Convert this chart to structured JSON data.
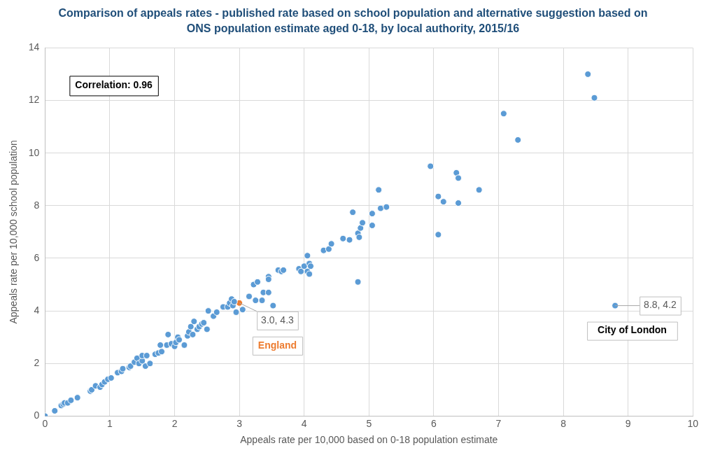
{
  "chart_data": {
    "type": "scatter",
    "title": "Comparison of appeals rates - published rate based on school population and alternative suggestion based on ONS population estimate aged 0-18, by local authority, 2015/16",
    "xlabel": "Appeals rate per 10,000 based on 0-18 population estimate",
    "ylabel": "Appeals rate per 10,000 school population",
    "xlim": [
      0,
      10
    ],
    "ylim": [
      0,
      14
    ],
    "xticks": [
      0,
      1,
      2,
      3,
      4,
      5,
      6,
      7,
      8,
      9,
      10
    ],
    "yticks": [
      0,
      2,
      4,
      6,
      8,
      10,
      12,
      14
    ],
    "grid": true,
    "legend": false,
    "marker": "circle",
    "annotations": [
      "Correlation: 0.96"
    ],
    "series": [
      {
        "color": "#5b9bd5",
        "x": [
          0,
          0.15,
          0.25,
          0.28,
          0.3,
          0.35,
          0.4,
          0.5,
          0.7,
          0.72,
          0.78,
          0.85,
          0.88,
          0.92,
          0.97,
          1.02,
          1.12,
          1.18,
          1.2,
          1.3,
          1.32,
          1.38,
          1.42,
          1.45,
          1.5,
          1.5,
          1.55,
          1.57,
          1.62,
          1.7,
          1.75,
          1.8,
          1.78,
          1.88,
          1.9,
          1.95,
          2.0,
          2.02,
          2.05,
          2.07,
          2.15,
          2.2,
          2.22,
          2.25,
          2.28,
          2.3,
          2.35,
          2.38,
          2.42,
          2.45,
          2.5,
          2.52,
          2.6,
          2.65,
          2.75,
          2.82,
          2.85,
          2.88,
          2.9,
          2.92,
          2.95,
          3.05,
          3.15,
          3.22,
          3.28,
          3.25,
          3.35,
          3.37,
          3.45,
          3.45,
          3.45,
          3.52,
          3.6,
          3.65,
          3.68,
          3.92,
          3.95,
          4.0,
          4.05,
          4.05,
          4.08,
          4.1,
          4.08,
          4.3,
          4.38,
          4.42,
          4.6,
          4.7,
          4.75,
          4.83,
          4.85,
          4.87,
          4.9,
          4.83,
          5.05,
          5.05,
          5.15,
          5.18,
          5.27,
          5.95,
          6.07,
          6.07,
          6.15,
          6.35,
          6.38,
          6.38,
          6.7,
          7.08,
          7.3,
          8.38,
          8.48
        ],
        "values": [
          0,
          0.2,
          0.4,
          0.45,
          0.5,
          0.5,
          0.6,
          0.7,
          0.95,
          1.0,
          1.15,
          1.1,
          1.2,
          1.3,
          1.4,
          1.45,
          1.65,
          1.7,
          1.8,
          1.85,
          1.9,
          2.05,
          2.2,
          2.0,
          2.1,
          2.3,
          1.9,
          2.3,
          2.0,
          2.35,
          2.4,
          2.45,
          2.7,
          2.7,
          3.1,
          2.75,
          2.65,
          2.8,
          3.0,
          2.9,
          2.7,
          3.05,
          3.2,
          3.4,
          3.1,
          3.6,
          3.3,
          3.4,
          3.5,
          3.55,
          3.3,
          4.0,
          3.8,
          3.95,
          4.15,
          4.15,
          4.3,
          4.45,
          4.2,
          4.35,
          3.95,
          4.05,
          4.55,
          5.0,
          5.1,
          4.4,
          4.4,
          4.7,
          4.7,
          5.3,
          5.2,
          4.2,
          5.55,
          5.5,
          5.55,
          5.6,
          5.5,
          5.7,
          6.1,
          5.5,
          5.8,
          5.7,
          5.4,
          6.3,
          6.35,
          6.55,
          6.75,
          6.7,
          7.75,
          6.95,
          6.8,
          7.15,
          7.35,
          5.1,
          7.7,
          7.25,
          8.6,
          7.9,
          7.95,
          9.5,
          8.35,
          6.9,
          8.15,
          9.25,
          9.05,
          8.1,
          8.6,
          11.5,
          10.5,
          13.0,
          12.1
        ]
      },
      {
        "name": "England",
        "color": "#ed7d31",
        "x": [
          3.0
        ],
        "values": [
          4.3
        ],
        "value_labels": [
          "3.0, 4.3"
        ]
      },
      {
        "name": "City of London",
        "color": "#5b9bd5",
        "x": [
          8.8
        ],
        "values": [
          4.2
        ],
        "value_labels": [
          "8.8, 4.2"
        ]
      }
    ]
  }
}
